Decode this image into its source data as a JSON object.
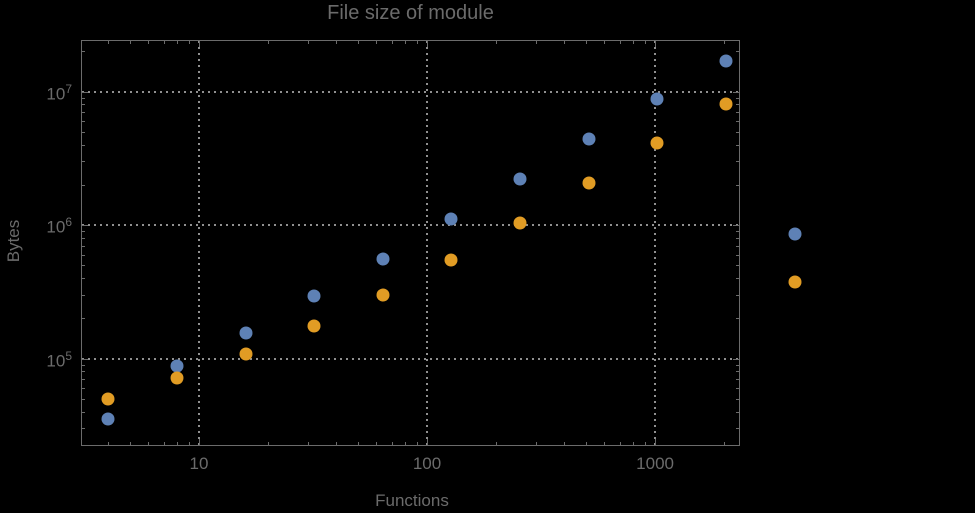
{
  "colors": {
    "background": "#000000",
    "text": "#6b6b6b",
    "frame": "#6b6b6b",
    "gridline": "#909090",
    "series_blue": "#5E81B5",
    "series_orange": "#E19C24"
  },
  "chart_data": {
    "type": "scatter",
    "title": "File size of module",
    "xlabel": "Functions",
    "ylabel": "Bytes",
    "x_scale": "log",
    "y_scale": "log",
    "xlim": [
      3.07,
      2333
    ],
    "ylim": [
      22500,
      23900000
    ],
    "grid": true,
    "legend": "none",
    "x_ticks": [
      {
        "value": 10,
        "label": "10"
      },
      {
        "value": 100,
        "label": "100"
      },
      {
        "value": 1000,
        "label": "1000"
      }
    ],
    "y_ticks": [
      {
        "value": 100000,
        "base": "10",
        "exp": "5"
      },
      {
        "value": 1000000,
        "base": "10",
        "exp": "6"
      },
      {
        "value": 10000000,
        "base": "10",
        "exp": "7"
      }
    ],
    "x": [
      4,
      8,
      16,
      32,
      64,
      128,
      256,
      512,
      1024,
      2048,
      4096
    ],
    "series": [
      {
        "name": "blue",
        "color": "#5E81B5",
        "values": [
          35000,
          88000,
          155000,
          295000,
          560000,
          1100000,
          2200000,
          4400000,
          8800000,
          17000000,
          850000
        ]
      },
      {
        "name": "orange",
        "color": "#E19C24",
        "values": [
          50000,
          71000,
          108000,
          175000,
          300000,
          545000,
          1040000,
          2060000,
          4100000,
          8100000,
          375000
        ]
      }
    ]
  }
}
